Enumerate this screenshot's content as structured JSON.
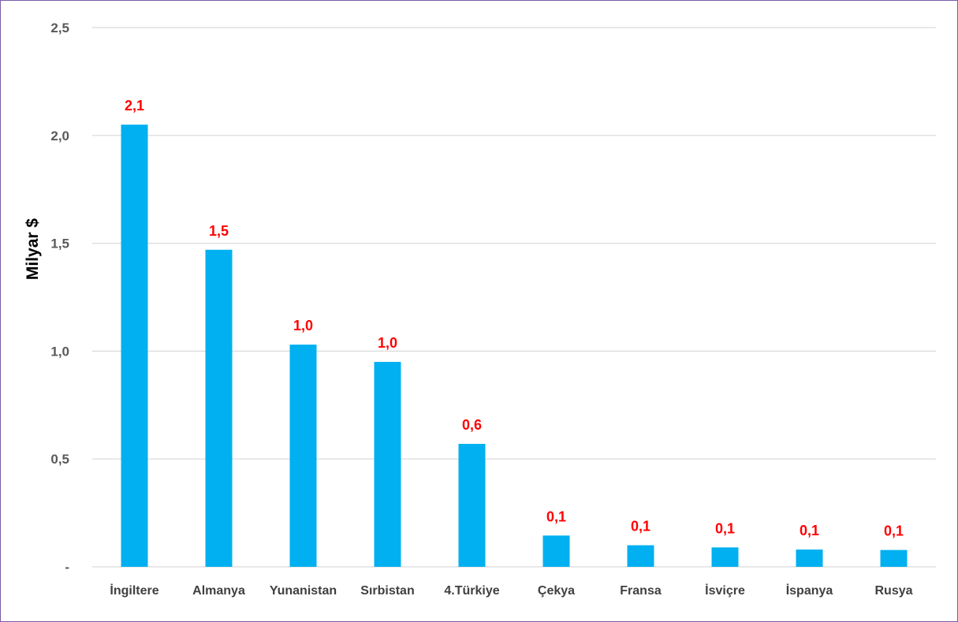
{
  "chart_data": {
    "type": "bar",
    "title": "",
    "xlabel": "",
    "ylabel": "Milyar $",
    "categories": [
      "İngiltere",
      "Almanya",
      "Yunanistan",
      "Sırbistan",
      "4.Türkiye",
      "Çekya",
      "Fransa",
      "İsviçre",
      "İspanya",
      "Rusya"
    ],
    "values": [
      2.05,
      1.47,
      1.03,
      0.95,
      0.57,
      0.145,
      0.1,
      0.09,
      0.08,
      0.078
    ],
    "data_labels": [
      "2,1",
      "1,5",
      "1,0",
      "1,0",
      "0,6",
      "0,1",
      "0,1",
      "0,1",
      "0,1",
      "0,1"
    ],
    "ylim": [
      0,
      2.5
    ],
    "yticks": [
      0,
      0.5,
      1.0,
      1.5,
      2.0,
      2.5
    ],
    "ytick_labels": [
      "-",
      "0,5",
      "1,0",
      "1,5",
      "2,0",
      "2,5"
    ],
    "grid": true,
    "legend": "none",
    "colors": {
      "bar": "#00b0f0",
      "data_label": "#ff0000",
      "grid": "#d9d9d9",
      "border": "#7a5ca8"
    }
  }
}
